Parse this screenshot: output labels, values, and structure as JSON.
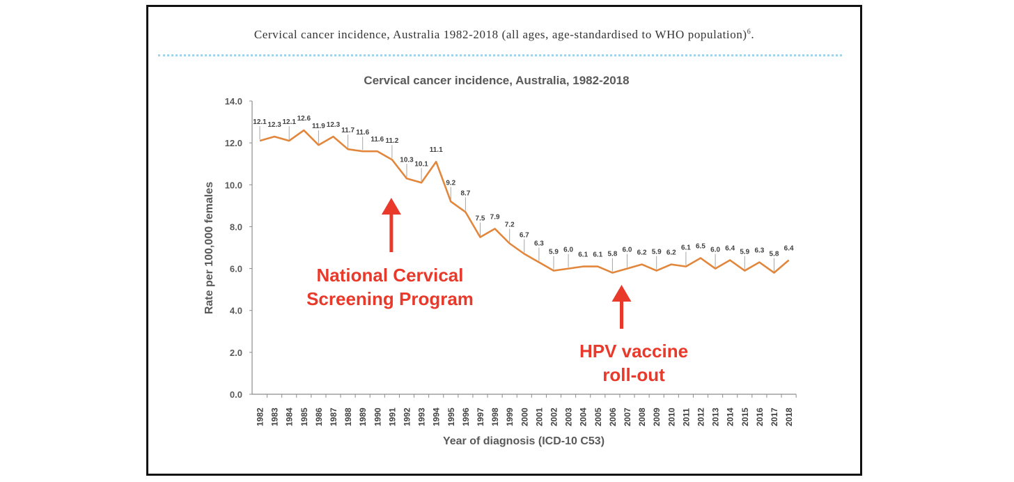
{
  "caption": {
    "text": "Cervical cancer incidence, Australia 1982-2018 (all ages, age-standardised to WHO population)",
    "superscript": "6",
    "suffix": "."
  },
  "chart_data": {
    "type": "line",
    "title": "Cervical cancer incidence, Australia, 1982-2018",
    "xlabel": "Year of diagnosis (ICD-10 C53)",
    "ylabel": "Rate per 100,000 females",
    "ylim": [
      0,
      14
    ],
    "yticks": [
      "0.0",
      "2.0",
      "4.0",
      "6.0",
      "8.0",
      "10.0",
      "12.0",
      "14.0"
    ],
    "grid": false,
    "categories": [
      "1982",
      "1983",
      "1984",
      "1985",
      "1986",
      "1987",
      "1988",
      "1989",
      "1990",
      "1991",
      "1992",
      "1993",
      "1994",
      "1995",
      "1996",
      "1997",
      "1998",
      "1999",
      "2000",
      "2001",
      "2002",
      "2003",
      "2004",
      "2005",
      "2006",
      "2007",
      "2008",
      "2009",
      "2010",
      "2011",
      "2012",
      "2013",
      "2014",
      "2015",
      "2016",
      "2017",
      "2018"
    ],
    "values": [
      12.1,
      12.3,
      12.1,
      12.6,
      11.9,
      12.3,
      11.7,
      11.6,
      11.6,
      11.2,
      10.3,
      10.1,
      11.1,
      9.2,
      8.7,
      7.5,
      7.9,
      7.2,
      6.7,
      6.3,
      5.9,
      6.0,
      6.1,
      6.1,
      5.8,
      6.0,
      6.2,
      5.9,
      6.2,
      6.1,
      6.5,
      6.0,
      6.4,
      5.9,
      6.3,
      5.8,
      6.4
    ],
    "data_labels": [
      "12.1",
      "12.3",
      "12.1",
      "12.6",
      "11.9",
      "12.3",
      "11.7",
      "11.6",
      "11.6",
      "11.2",
      "10.3",
      "10.1",
      "11.1",
      "9.2",
      "8.7",
      "7.5",
      "7.9",
      "7.2",
      "6.7",
      "6.3",
      "5.9",
      "6.0",
      "6.1",
      "6.1",
      "5.8",
      "6.0",
      "6.2",
      "5.9",
      "6.2",
      "6.1",
      "6.5",
      "6.0",
      "6.4",
      "5.9",
      "6.3",
      "5.8",
      "6.4"
    ],
    "line_color": "#e2863c",
    "annotations": [
      {
        "lines": [
          "National Cervical",
          "Screening Program"
        ],
        "year": "1991",
        "color": "#e8392b"
      },
      {
        "lines": [
          "HPV vaccine",
          "roll-out"
        ],
        "year": "2007",
        "color": "#e8392b"
      }
    ]
  }
}
